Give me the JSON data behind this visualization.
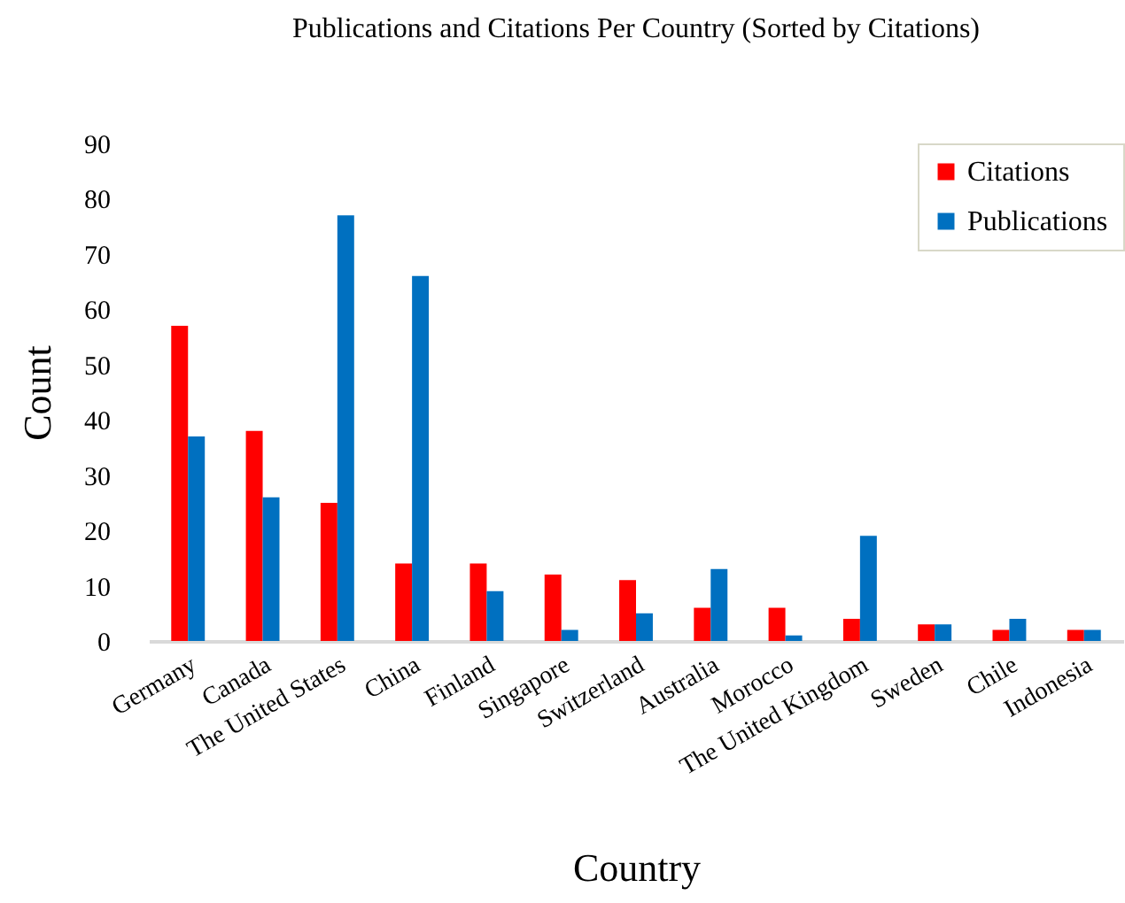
{
  "chart_data": {
    "type": "bar",
    "title": "Publications and Citations Per Country (Sorted by Citations)",
    "xlabel": "Country",
    "ylabel": "Count",
    "categories": [
      "Germany",
      "Canada",
      "The United States",
      "China",
      "Finland",
      "Singapore",
      "Switzerland",
      "Australia",
      "Morocco",
      "The United Kingdom",
      "Sweden",
      "Chile",
      "Indonesia"
    ],
    "series": [
      {
        "name": "Citations",
        "color": "#ff0000",
        "values": [
          57,
          38,
          25,
          14,
          14,
          12,
          11,
          6,
          6,
          4,
          3,
          2,
          2
        ]
      },
      {
        "name": "Publications",
        "color": "#0070c0",
        "values": [
          37,
          26,
          77,
          66,
          9,
          2,
          5,
          13,
          1,
          19,
          3,
          4,
          2
        ]
      }
    ],
    "ylim": [
      0,
      90
    ],
    "yticks": [
      0,
      10,
      20,
      30,
      40,
      50,
      60,
      70,
      80,
      90
    ],
    "legend": "top right"
  }
}
